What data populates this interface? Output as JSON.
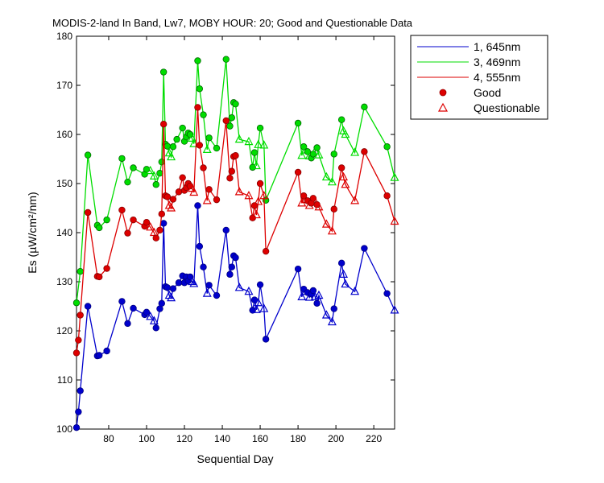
{
  "chart_data": {
    "type": "line",
    "title": "MODIS-2-land In Band,  Lw7, MOBY HOUR: 20;  Good and Questionable Data",
    "xlabel": "Sequential Day",
    "ylabel": "Es (µW/cm²/nm)",
    "xlim": [
      63,
      231
    ],
    "ylim": [
      100,
      180
    ],
    "xticks": [
      80,
      100,
      120,
      140,
      160,
      180,
      200,
      220
    ],
    "yticks": [
      100,
      110,
      120,
      130,
      140,
      150,
      160,
      170,
      180
    ],
    "grid": false,
    "legend_position": "outside-top-right",
    "legend": {
      "entries": [
        "1, 645nm",
        "3, 469nm",
        "4, 555nm",
        "Good",
        "Questionable"
      ]
    },
    "series": [
      {
        "name": "1, 645nm",
        "color": "#0000cc",
        "points": [
          [
            63,
            100.3,
            "g"
          ],
          [
            64,
            103.5,
            "g"
          ],
          [
            65,
            107.8,
            "g"
          ],
          [
            69,
            125.0,
            "g"
          ],
          [
            74,
            114.9,
            "g"
          ],
          [
            75,
            115.0,
            "g"
          ],
          [
            79,
            115.9,
            "g"
          ],
          [
            87,
            126.0,
            "g"
          ],
          [
            90,
            121.5,
            "g"
          ],
          [
            93,
            124.6,
            "g"
          ],
          [
            99,
            123.3,
            "g"
          ],
          [
            100,
            123.8,
            "g"
          ],
          [
            102,
            122.9,
            "q"
          ],
          [
            104,
            122.0,
            "q"
          ],
          [
            105,
            120.6,
            "g"
          ],
          [
            107,
            124.5,
            "g"
          ],
          [
            108,
            125.6,
            "g"
          ],
          [
            109,
            141.9,
            "g"
          ],
          [
            110,
            129.0,
            "g"
          ],
          [
            111,
            128.8,
            "g"
          ],
          [
            112,
            127.2,
            "q"
          ],
          [
            113,
            126.7,
            "q"
          ],
          [
            114,
            128.6,
            "g"
          ],
          [
            117,
            129.8,
            "g"
          ],
          [
            119,
            131.2,
            "g"
          ],
          [
            120,
            129.8,
            "g"
          ],
          [
            121,
            131.0,
            "g"
          ],
          [
            122,
            130.2,
            "g"
          ],
          [
            123,
            131.0,
            "g"
          ],
          [
            124,
            130.0,
            "q"
          ],
          [
            125,
            129.6,
            "q"
          ],
          [
            127,
            145.5,
            "g"
          ],
          [
            128,
            137.2,
            "g"
          ],
          [
            130,
            133.0,
            "g"
          ],
          [
            132,
            127.6,
            "q"
          ],
          [
            133,
            129.3,
            "g"
          ],
          [
            137,
            127.2,
            "g"
          ],
          [
            142,
            140.5,
            "g"
          ],
          [
            144,
            131.5,
            "g"
          ],
          [
            145,
            133.0,
            "g"
          ],
          [
            146,
            135.3,
            "g"
          ],
          [
            147,
            134.9,
            "g"
          ],
          [
            149,
            128.8,
            "q"
          ],
          [
            154,
            128.0,
            "q"
          ],
          [
            156,
            124.2,
            "g"
          ],
          [
            157,
            126.3,
            "g"
          ],
          [
            158,
            124.3,
            "q"
          ],
          [
            159,
            125.7,
            "q"
          ],
          [
            160,
            129.4,
            "g"
          ],
          [
            162,
            124.5,
            "q"
          ],
          [
            163,
            118.3,
            "g"
          ],
          [
            180,
            132.6,
            "g"
          ],
          [
            182,
            126.9,
            "q"
          ],
          [
            183,
            128.5,
            "g"
          ],
          [
            184,
            128.0,
            "q"
          ],
          [
            185,
            127.8,
            "g"
          ],
          [
            186,
            126.8,
            "q"
          ],
          [
            187,
            127.5,
            "g"
          ],
          [
            188,
            128.2,
            "g"
          ],
          [
            189,
            126.9,
            "q"
          ],
          [
            190,
            125.6,
            "g"
          ],
          [
            191,
            127.2,
            "q"
          ],
          [
            195,
            123.2,
            "q"
          ],
          [
            198,
            121.8,
            "q"
          ],
          [
            199,
            124.5,
            "g"
          ],
          [
            203,
            133.8,
            "g"
          ],
          [
            204,
            131.5,
            "q"
          ],
          [
            205,
            129.5,
            "q"
          ],
          [
            210,
            128.0,
            "q"
          ],
          [
            215,
            136.8,
            "g"
          ],
          [
            227,
            127.6,
            "g"
          ],
          [
            231,
            124.2,
            "q"
          ]
        ]
      },
      {
        "name": "3, 469nm",
        "color": "#00dd00",
        "points": [
          [
            63,
            125.7,
            "g"
          ],
          [
            65,
            132.1,
            "g"
          ],
          [
            69,
            155.8,
            "g"
          ],
          [
            74,
            141.5,
            "g"
          ],
          [
            75,
            141.0,
            "g"
          ],
          [
            79,
            142.6,
            "g"
          ],
          [
            87,
            155.1,
            "g"
          ],
          [
            90,
            150.3,
            "g"
          ],
          [
            93,
            153.2,
            "g"
          ],
          [
            99,
            151.9,
            "g"
          ],
          [
            100,
            152.9,
            "g"
          ],
          [
            102,
            152.6,
            "q"
          ],
          [
            104,
            151.5,
            "q"
          ],
          [
            105,
            149.8,
            "g"
          ],
          [
            107,
            152.1,
            "g"
          ],
          [
            108,
            154.4,
            "g"
          ],
          [
            109,
            172.7,
            "g"
          ],
          [
            110,
            158.0,
            "g"
          ],
          [
            111,
            157.6,
            "g"
          ],
          [
            112,
            156.2,
            "q"
          ],
          [
            113,
            155.4,
            "q"
          ],
          [
            114,
            157.5,
            "g"
          ],
          [
            116,
            159.0,
            "g"
          ],
          [
            119,
            161.3,
            "g"
          ],
          [
            120,
            158.6,
            "g"
          ],
          [
            121,
            159.5,
            "g"
          ],
          [
            122,
            160.3,
            "g"
          ],
          [
            123,
            160.0,
            "g"
          ],
          [
            124,
            159.2,
            "q"
          ],
          [
            125,
            158.1,
            "q"
          ],
          [
            127,
            175.0,
            "g"
          ],
          [
            128,
            169.3,
            "g"
          ],
          [
            130,
            164.0,
            "g"
          ],
          [
            132,
            156.9,
            "q"
          ],
          [
            133,
            159.3,
            "g"
          ],
          [
            137,
            157.2,
            "g"
          ],
          [
            142,
            175.3,
            "g"
          ],
          [
            144,
            161.7,
            "g"
          ],
          [
            145,
            163.4,
            "g"
          ],
          [
            146,
            166.5,
            "g"
          ],
          [
            147,
            166.2,
            "g"
          ],
          [
            149,
            159.0,
            "q"
          ],
          [
            154,
            158.5,
            "q"
          ],
          [
            156,
            153.3,
            "g"
          ],
          [
            157,
            156.3,
            "g"
          ],
          [
            158,
            153.6,
            "q"
          ],
          [
            159,
            157.9,
            "q"
          ],
          [
            160,
            161.3,
            "g"
          ],
          [
            162,
            157.8,
            "q"
          ],
          [
            163,
            146.6,
            "g"
          ],
          [
            180,
            162.3,
            "g"
          ],
          [
            182,
            155.7,
            "q"
          ],
          [
            183,
            157.5,
            "g"
          ],
          [
            184,
            156.8,
            "q"
          ],
          [
            185,
            156.5,
            "g"
          ],
          [
            186,
            155.6,
            "q"
          ],
          [
            187,
            155.2,
            "g"
          ],
          [
            188,
            156.0,
            "g"
          ],
          [
            189,
            156.6,
            "q"
          ],
          [
            190,
            157.3,
            "g"
          ],
          [
            191,
            155.8,
            "q"
          ],
          [
            195,
            151.3,
            "q"
          ],
          [
            198,
            150.3,
            "q"
          ],
          [
            199,
            156.0,
            "g"
          ],
          [
            203,
            163.0,
            "g"
          ],
          [
            204,
            160.7,
            "q"
          ],
          [
            205,
            160.0,
            "q"
          ],
          [
            210,
            156.3,
            "q"
          ],
          [
            215,
            165.6,
            "g"
          ],
          [
            227,
            157.5,
            "g"
          ],
          [
            231,
            151.2,
            "q"
          ]
        ]
      },
      {
        "name": "4, 555nm",
        "color": "#dd0000",
        "points": [
          [
            63,
            115.5,
            "g"
          ],
          [
            64,
            118.1,
            "g"
          ],
          [
            65,
            123.2,
            "g"
          ],
          [
            69,
            144.1,
            "g"
          ],
          [
            74,
            131.1,
            "g"
          ],
          [
            75,
            131.0,
            "g"
          ],
          [
            79,
            132.7,
            "g"
          ],
          [
            87,
            144.6,
            "g"
          ],
          [
            90,
            139.9,
            "g"
          ],
          [
            93,
            142.6,
            "g"
          ],
          [
            99,
            141.3,
            "g"
          ],
          [
            100,
            142.1,
            "g"
          ],
          [
            102,
            141.1,
            "q"
          ],
          [
            104,
            140.0,
            "q"
          ],
          [
            105,
            138.9,
            "g"
          ],
          [
            107,
            140.5,
            "g"
          ],
          [
            108,
            143.8,
            "g"
          ],
          [
            109,
            162.1,
            "g"
          ],
          [
            110,
            147.5,
            "g"
          ],
          [
            111,
            147.3,
            "g"
          ],
          [
            112,
            145.5,
            "q"
          ],
          [
            113,
            145.0,
            "q"
          ],
          [
            114,
            146.8,
            "g"
          ],
          [
            117,
            148.3,
            "g"
          ],
          [
            119,
            151.2,
            "g"
          ],
          [
            120,
            148.6,
            "g"
          ],
          [
            121,
            149.2,
            "g"
          ],
          [
            122,
            150.0,
            "g"
          ],
          [
            123,
            149.5,
            "g"
          ],
          [
            124,
            149.0,
            "q"
          ],
          [
            125,
            148.2,
            "q"
          ],
          [
            127,
            165.5,
            "g"
          ],
          [
            128,
            157.8,
            "g"
          ],
          [
            130,
            153.2,
            "g"
          ],
          [
            132,
            146.5,
            "q"
          ],
          [
            133,
            148.8,
            "g"
          ],
          [
            137,
            146.7,
            "g"
          ],
          [
            142,
            162.8,
            "g"
          ],
          [
            144,
            151.1,
            "g"
          ],
          [
            145,
            152.5,
            "g"
          ],
          [
            146,
            155.5,
            "g"
          ],
          [
            147,
            155.7,
            "g"
          ],
          [
            149,
            148.3,
            "q"
          ],
          [
            154,
            147.5,
            "q"
          ],
          [
            156,
            143.0,
            "g"
          ],
          [
            157,
            145.5,
            "g"
          ],
          [
            158,
            143.6,
            "q"
          ],
          [
            159,
            146.3,
            "q"
          ],
          [
            160,
            150.0,
            "g"
          ],
          [
            162,
            147.5,
            "q"
          ],
          [
            163,
            136.2,
            "g"
          ],
          [
            180,
            152.3,
            "g"
          ],
          [
            182,
            146.0,
            "q"
          ],
          [
            183,
            147.5,
            "g"
          ],
          [
            184,
            146.7,
            "q"
          ],
          [
            185,
            146.5,
            "g"
          ],
          [
            186,
            145.5,
            "q"
          ],
          [
            187,
            146.0,
            "g"
          ],
          [
            188,
            147.0,
            "g"
          ],
          [
            189,
            146.3,
            "q"
          ],
          [
            190,
            145.7,
            "g"
          ],
          [
            191,
            145.2,
            "q"
          ],
          [
            195,
            141.7,
            "q"
          ],
          [
            198,
            140.3,
            "q"
          ],
          [
            199,
            144.8,
            "g"
          ],
          [
            203,
            153.2,
            "g"
          ],
          [
            204,
            151.3,
            "q"
          ],
          [
            205,
            149.8,
            "q"
          ],
          [
            210,
            146.5,
            "q"
          ],
          [
            215,
            156.5,
            "g"
          ],
          [
            227,
            147.5,
            "g"
          ],
          [
            231,
            142.3,
            "q"
          ]
        ]
      }
    ]
  }
}
